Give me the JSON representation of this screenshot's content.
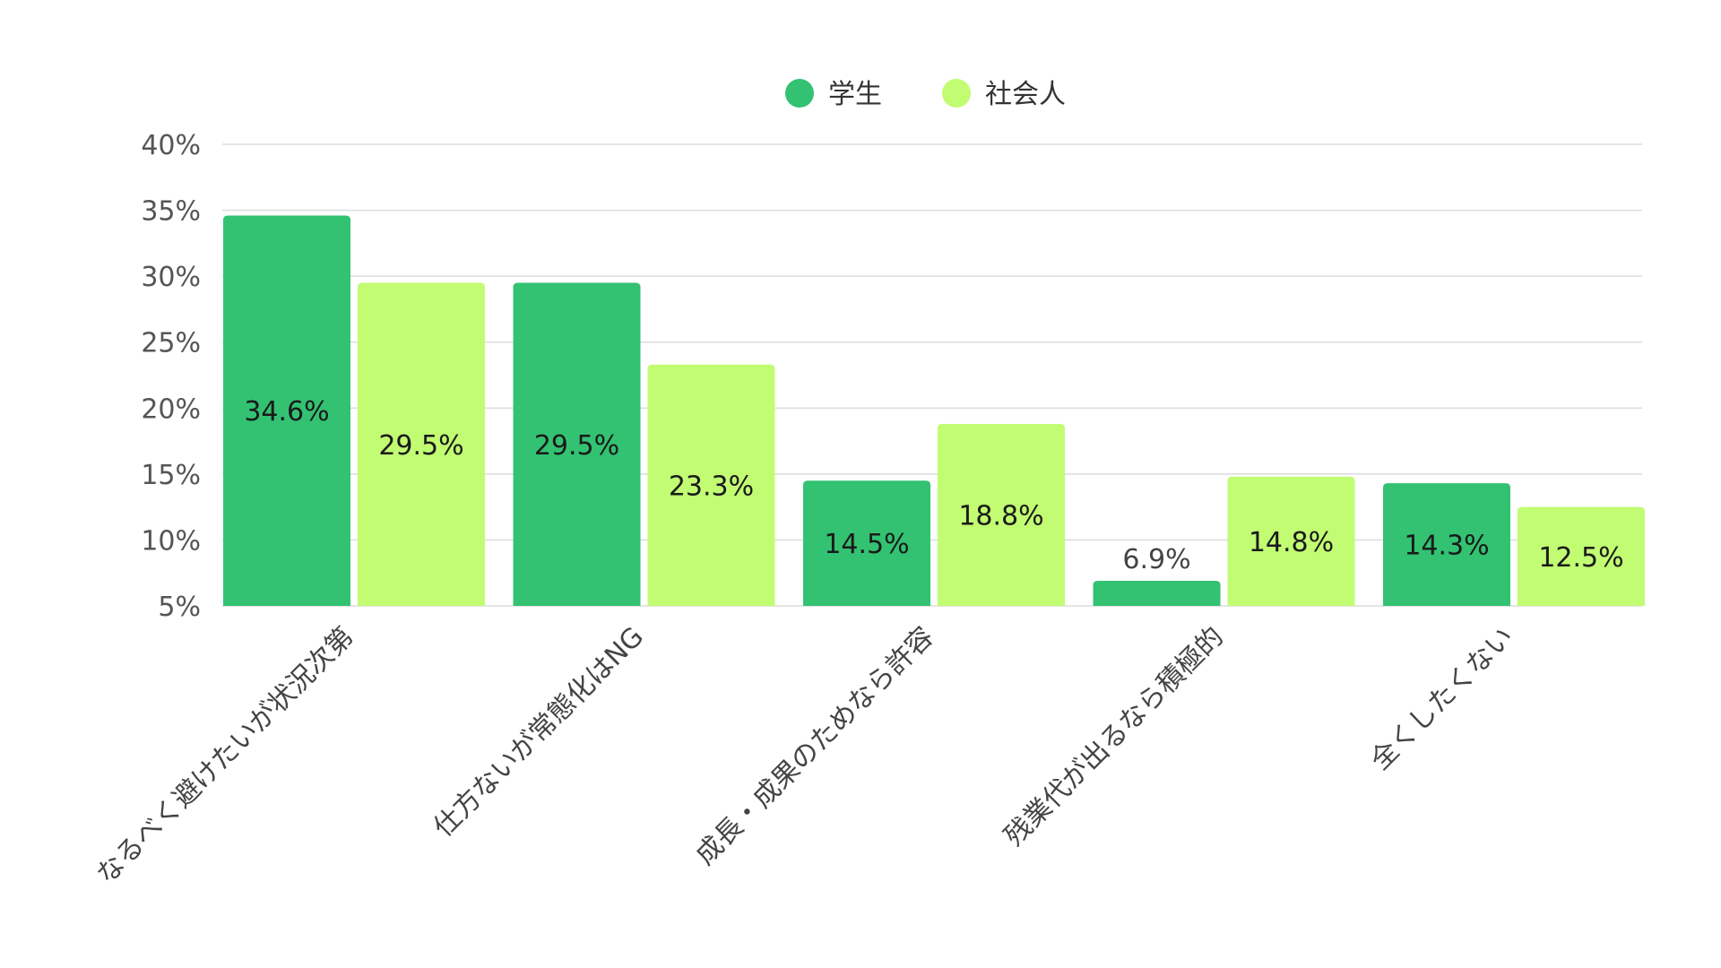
{
  "chart_data": {
    "type": "bar",
    "title": "",
    "xlabel": "",
    "ylabel": "",
    "categories": [
      "なるべく避けたいが状況次第",
      "仕方ないが常態化はNG",
      "成長・成果のためなら許容",
      "残業代が出るなら積極的",
      "全くしたくない"
    ],
    "series": [
      {
        "name": "学生",
        "color": "#33c272",
        "values": [
          34.6,
          29.5,
          14.5,
          6.9,
          14.3
        ],
        "labels": [
          "34.6%",
          "29.5%",
          "14.5%",
          "6.9%",
          "14.3%"
        ]
      },
      {
        "name": "社会人",
        "color": "#c1fc73",
        "values": [
          29.5,
          23.3,
          18.8,
          14.8,
          12.5
        ],
        "labels": [
          "29.5%",
          "23.3%",
          "18.8%",
          "14.8%",
          "12.5%"
        ]
      }
    ],
    "ylim": [
      5,
      40
    ],
    "yticks": [
      5,
      10,
      15,
      20,
      25,
      30,
      35,
      40
    ],
    "ytick_labels": [
      "5%",
      "10%",
      "15%",
      "20%",
      "25%",
      "30%",
      "35%",
      "40%"
    ],
    "grid": true,
    "legend_position": "top-center",
    "xtick_rotation": "diagonal"
  }
}
